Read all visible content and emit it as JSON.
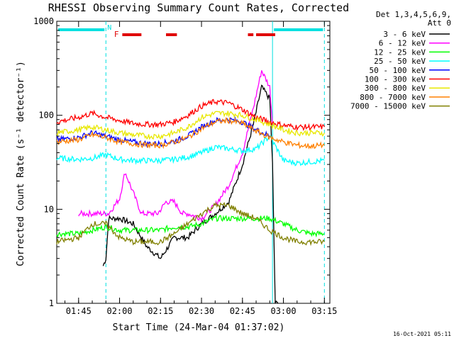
{
  "chart_data": {
    "type": "line",
    "title": "RHESSI Observing Summary Count Rates, Corrected",
    "xlabel": "Start Time (24-Mar-04 01:37:02)",
    "ylabel": "Corrected Count Rate (s⁻¹ detector⁻¹)",
    "y_scale": "log",
    "ylim": [
      1,
      1000
    ],
    "xlim_minutes_after_0137": [
      0,
      100
    ],
    "x_ticks": [
      "01:45",
      "02:00",
      "02:15",
      "02:30",
      "02:45",
      "03:00",
      "03:15"
    ],
    "y_ticks": [
      "1",
      "10",
      "100",
      "1000"
    ],
    "legend": {
      "header": "Det 1,3,4,5,6,9,",
      "subheader": "Att 0",
      "placement": "right"
    },
    "flags": {
      "night_markers": [
        "N"
      ],
      "flare_marker": "F",
      "saa_marker_color": "#00e0e0",
      "flare_color": "#e00000"
    },
    "footer_date": "16-Oct-2021 05:11",
    "series": [
      {
        "name": "3 - 6 keV",
        "color": "#000000",
        "x": [
          "01:37",
          "01:53",
          "01:54",
          "01:55",
          "01:56",
          "02:00",
          "02:05",
          "02:10",
          "02:15",
          "02:20",
          "02:25",
          "02:30",
          "02:35",
          "02:40",
          "02:45",
          "02:49",
          "02:52",
          "02:55",
          "02:56",
          "02:57",
          "02:58",
          "03:00",
          "03:05",
          "03:10",
          "03:14"
        ],
        "y": [
          null,
          null,
          2.5,
          3,
          8,
          8,
          7,
          4,
          3,
          5,
          5,
          7,
          9,
          12,
          30,
          80,
          200,
          150,
          30,
          1,
          1,
          null,
          null,
          null,
          null
        ]
      },
      {
        "name": "6 - 12 keV",
        "color": "#ff00ff",
        "x": [
          "01:45",
          "01:52",
          "01:56",
          "02:00",
          "02:02",
          "02:05",
          "02:08",
          "02:11",
          "02:14",
          "02:17",
          "02:20",
          "02:23",
          "02:25",
          "02:30",
          "02:35",
          "02:40",
          "02:45",
          "02:49",
          "02:52",
          "02:55",
          "02:56"
        ],
        "y": [
          9,
          9,
          9,
          13,
          25,
          15,
          9,
          9,
          9,
          12,
          12,
          9,
          9,
          8,
          11,
          18,
          40,
          120,
          300,
          200,
          80
        ]
      },
      {
        "name": "12 - 25 keV",
        "color": "#00ff00",
        "x": [
          "01:37",
          "01:45",
          "01:50",
          "01:55",
          "02:00",
          "02:05",
          "02:10",
          "02:15",
          "02:20",
          "02:25",
          "02:30",
          "02:35",
          "02:40",
          "02:45",
          "02:50",
          "02:55",
          "03:00",
          "03:05",
          "03:10",
          "03:15"
        ],
        "y": [
          5.5,
          5.5,
          6,
          6.5,
          6,
          6,
          6,
          6,
          6.5,
          6.5,
          7,
          8,
          8,
          8,
          8,
          8,
          7,
          6,
          5.5,
          5.5
        ]
      },
      {
        "name": "25 - 50 keV",
        "color": "#00ffff",
        "x": [
          "01:37",
          "01:45",
          "01:50",
          "01:55",
          "02:00",
          "02:05",
          "02:10",
          "02:15",
          "02:20",
          "02:25",
          "02:30",
          "02:35",
          "02:40",
          "02:45",
          "02:50",
          "02:55",
          "03:00",
          "03:05",
          "03:10",
          "03:15"
        ],
        "y": [
          35,
          34,
          35,
          38,
          34,
          33,
          33,
          33,
          34,
          36,
          40,
          46,
          44,
          42,
          44,
          60,
          33,
          31,
          32,
          33
        ]
      },
      {
        "name": "50 - 100 keV",
        "color": "#0000ff",
        "x": [
          "01:37",
          "01:45",
          "01:50",
          "01:55",
          "02:00",
          "02:05",
          "02:10",
          "02:15",
          "02:20",
          "02:25",
          "02:30",
          "02:35",
          "02:40",
          "02:45",
          "02:50",
          "02:55"
        ],
        "y": [
          55,
          58,
          65,
          60,
          55,
          52,
          50,
          50,
          53,
          60,
          75,
          88,
          90,
          85,
          70,
          60
        ]
      },
      {
        "name": "100 - 300 keV",
        "color": "#ff0000",
        "x": [
          "01:37",
          "01:45",
          "01:50",
          "01:55",
          "02:00",
          "02:05",
          "02:10",
          "02:15",
          "02:20",
          "02:25",
          "02:30",
          "02:35",
          "02:40",
          "02:45",
          "02:50",
          "02:55",
          "03:00",
          "03:05",
          "03:10",
          "03:15"
        ],
        "y": [
          85,
          95,
          105,
          95,
          88,
          82,
          80,
          80,
          85,
          100,
          125,
          140,
          135,
          115,
          95,
          85,
          78,
          75,
          75,
          75
        ]
      },
      {
        "name": "300 - 800 keV",
        "color": "#e8e800",
        "x": [
          "01:37",
          "01:45",
          "01:50",
          "01:55",
          "02:00",
          "02:05",
          "02:10",
          "02:15",
          "02:20",
          "02:25",
          "02:30",
          "02:35",
          "02:40",
          "02:45",
          "02:50",
          "02:55",
          "03:00",
          "03:05",
          "03:10",
          "03:15"
        ],
        "y": [
          65,
          70,
          75,
          70,
          65,
          62,
          60,
          60,
          65,
          75,
          95,
          105,
          105,
          100,
          90,
          80,
          70,
          65,
          65,
          65
        ]
      },
      {
        "name": "800 - 7000 keV",
        "color": "#ff8000",
        "x": [
          "01:37",
          "01:45",
          "01:50",
          "01:55",
          "02:00",
          "02:05",
          "02:10",
          "02:15",
          "02:20",
          "02:25",
          "02:30",
          "02:35",
          "02:40",
          "02:45",
          "02:50",
          "02:55",
          "03:00",
          "03:05",
          "03:10",
          "03:15"
        ],
        "y": [
          52,
          55,
          62,
          58,
          52,
          50,
          48,
          48,
          52,
          58,
          72,
          85,
          88,
          82,
          68,
          58,
          52,
          48,
          47,
          48
        ]
      },
      {
        "name": "7000 - 15000 keV",
        "color": "#808000",
        "x": [
          "01:37",
          "01:45",
          "01:50",
          "01:55",
          "02:00",
          "02:05",
          "02:10",
          "02:15",
          "02:20",
          "02:25",
          "02:30",
          "02:35",
          "02:40",
          "02:45",
          "02:50",
          "02:55",
          "03:00",
          "03:05",
          "03:10",
          "03:15"
        ],
        "y": [
          4.5,
          5,
          7,
          7,
          5,
          4.5,
          4.5,
          4.5,
          5.5,
          7,
          9,
          11,
          11,
          9,
          8,
          6,
          5,
          4.5,
          4.5,
          4.5
        ]
      }
    ]
  }
}
